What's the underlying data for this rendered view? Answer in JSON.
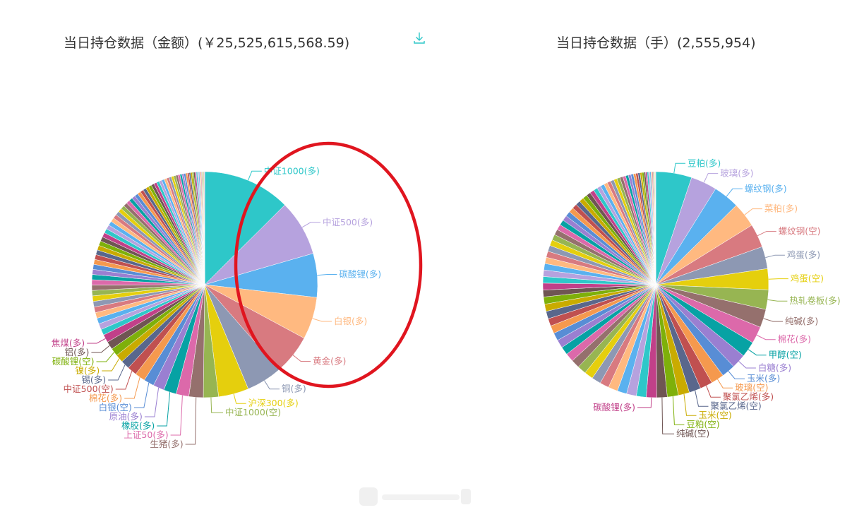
{
  "left_panel": {
    "title": "当日持仓数据（金额）(￥25,525,615,568.59)",
    "download_icon": "download-icon"
  },
  "right_panel": {
    "title": "当日持仓数据（手）(2,555,954)"
  },
  "palette": [
    "#2ec7c9",
    "#b6a2de",
    "#5ab1ef",
    "#ffb980",
    "#d87a80",
    "#8d98b3",
    "#e5cf0d",
    "#97b552",
    "#95706d",
    "#dc69aa",
    "#07a2a4",
    "#9a7fd1",
    "#588dd5",
    "#f5994e",
    "#c05050",
    "#59678c",
    "#c9ab00",
    "#7eb00a",
    "#6f5553",
    "#c14089"
  ],
  "annotation_color": "#e0151f",
  "chart_data": [
    {
      "type": "pie",
      "title": "当日持仓数据（金额）(￥25,525,615,568.59)",
      "labeled_slices": [
        {
          "name": "中证1000(多)",
          "value": 11.0
        },
        {
          "name": "中证500(多)",
          "value": 7.0
        },
        {
          "name": "碳酸锂(多)",
          "value": 5.5
        },
        {
          "name": "白银(多)",
          "value": 5.3
        },
        {
          "name": "黄金(多)",
          "value": 5.0
        },
        {
          "name": "铜(多)",
          "value": 4.5
        },
        {
          "name": "沪深300(多)",
          "value": 3.8
        },
        {
          "name": "中证1000(空)",
          "value": 1.9
        },
        {
          "name": "生猪(多)",
          "value": 1.8
        },
        {
          "name": "上证50(多)",
          "value": 1.6
        },
        {
          "name": "橡胶(多)",
          "value": 1.6
        },
        {
          "name": "原油(多)",
          "value": 1.4
        },
        {
          "name": "白银(空)",
          "value": 1.3
        },
        {
          "name": "棉花(多)",
          "value": 1.3
        },
        {
          "name": "中证500(空)",
          "value": 1.2
        },
        {
          "name": "锡(多)",
          "value": 1.1
        },
        {
          "name": "镍(多)",
          "value": 1.0
        },
        {
          "name": "碳酸锂(空)",
          "value": 1.0
        },
        {
          "name": "铝(多)",
          "value": 1.0
        },
        {
          "name": "焦煤(多)",
          "value": 1.0
        }
      ],
      "small_slices": [
        0.75,
        0.74,
        0.73,
        0.72,
        0.71,
        0.7,
        0.69,
        0.68,
        0.67,
        0.66,
        0.65,
        0.64,
        0.63,
        0.62,
        0.61,
        0.6,
        0.59,
        0.58,
        0.57,
        0.56,
        0.55,
        0.54,
        0.53,
        0.52,
        0.51,
        0.5,
        0.49,
        0.48,
        0.47,
        0.46,
        0.45,
        0.44,
        0.43,
        0.42,
        0.41,
        0.4,
        0.39,
        0.38,
        0.37,
        0.36,
        0.35,
        0.34,
        0.33,
        0.32,
        0.31,
        0.3,
        0.29,
        0.28,
        0.27,
        0.26,
        0.25,
        0.24,
        0.23,
        0.22,
        0.21,
        0.2,
        0.19,
        0.18,
        0.17,
        0.16,
        0.15,
        0.14,
        0.13,
        0.12,
        0.11,
        0.1,
        0.09,
        0.08,
        0.07,
        0.06
      ]
    },
    {
      "type": "pie",
      "title": "当日持仓数据（手）(2,555,954)",
      "labeled_slices": [
        {
          "name": "豆粕(多)",
          "value": 5.5
        },
        {
          "name": "玻璃(多)",
          "value": 4.0
        },
        {
          "name": "螺纹钢(多)",
          "value": 4.0
        },
        {
          "name": "菜粕(多)",
          "value": 3.8
        },
        {
          "name": "螺纹钢(空)",
          "value": 3.6
        },
        {
          "name": "鸡蛋(多)",
          "value": 3.4
        },
        {
          "name": "鸡蛋(空)",
          "value": 3.2
        },
        {
          "name": "热轧卷板(多)",
          "value": 3.0
        },
        {
          "name": "纯碱(多)",
          "value": 2.8
        },
        {
          "name": "棉花(多)",
          "value": 2.6
        },
        {
          "name": "甲醇(空)",
          "value": 2.4
        },
        {
          "name": "白糖(多)",
          "value": 2.2
        },
        {
          "name": "玉米(多)",
          "value": 2.1
        },
        {
          "name": "玻璃(空)",
          "value": 2.0
        },
        {
          "name": "聚氯乙烯(多)",
          "value": 1.9
        },
        {
          "name": "聚氯乙烯(空)",
          "value": 1.8
        },
        {
          "name": "玉米(空)",
          "value": 1.7
        },
        {
          "name": "豆粕(空)",
          "value": 1.7
        },
        {
          "name": "纯碱(空)",
          "value": 1.6
        },
        {
          "name": "碳酸锂(多)",
          "value": 1.6
        }
      ],
      "small_slices": [
        1.5,
        1.5,
        1.45,
        1.45,
        1.4,
        1.4,
        1.35,
        1.35,
        1.3,
        1.3,
        1.25,
        1.25,
        1.2,
        1.2,
        1.15,
        1.15,
        1.1,
        1.1,
        1.05,
        1.05,
        1.0,
        1.0,
        0.98,
        0.96,
        0.94,
        0.92,
        0.9,
        0.88,
        0.86,
        0.84,
        0.82,
        0.8,
        0.78,
        0.76,
        0.74,
        0.72,
        0.7,
        0.68,
        0.66,
        0.64,
        0.62,
        0.6,
        0.58,
        0.56,
        0.54,
        0.52,
        0.5,
        0.48,
        0.46,
        0.44,
        0.42,
        0.4,
        0.38,
        0.36,
        0.34,
        0.32,
        0.3,
        0.28,
        0.26,
        0.24,
        0.22,
        0.2,
        0.18,
        0.16,
        0.14,
        0.12,
        0.1,
        0.08,
        0.06,
        0.05
      ]
    }
  ]
}
